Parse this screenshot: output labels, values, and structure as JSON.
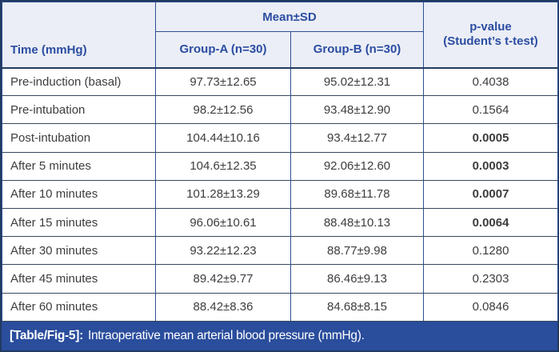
{
  "colors": {
    "header_bg": "#ebeef6",
    "header_text": "#2b4da1",
    "body_text": "#3d3d3d",
    "caption_bg": "#2a4d9c",
    "caption_text": "#ffffff",
    "outer_border": "#223a61"
  },
  "table": {
    "header": {
      "time_label": "Time (mmHg)",
      "mean_sd_label": "Mean±SD",
      "group_a_label": "Group-A (n=30)",
      "group_b_label": "Group-B (n=30)",
      "p_value_line1": "p-value",
      "p_value_line2": "(Student’s t-test)"
    },
    "rows": [
      {
        "time": "Pre-induction (basal)",
        "group_a": "97.73±12.65",
        "group_b": "95.02±12.31",
        "p": "0.4038",
        "p_bold": false
      },
      {
        "time": "Pre-intubation",
        "group_a": "98.2±12.56",
        "group_b": "93.48±12.90",
        "p": "0.1564",
        "p_bold": false
      },
      {
        "time": "Post-intubation",
        "group_a": "104.44±10.16",
        "group_b": "93.4±12.77",
        "p": "0.0005",
        "p_bold": true
      },
      {
        "time": "After 5 minutes",
        "group_a": "104.6±12.35",
        "group_b": "92.06±12.60",
        "p": "0.0003",
        "p_bold": true
      },
      {
        "time": "After 10 minutes",
        "group_a": "101.28±13.29",
        "group_b": "89.68±11.78",
        "p": "0.0007",
        "p_bold": true
      },
      {
        "time": "After 15 minutes",
        "group_a": "96.06±10.61",
        "group_b": "88.48±10.13",
        "p": "0.0064",
        "p_bold": true
      },
      {
        "time": "After 30 minutes",
        "group_a": "93.22±12.23",
        "group_b": "88.77±9.98",
        "p": "0.1280",
        "p_bold": false
      },
      {
        "time": "After 45 minutes",
        "group_a": "89.42±9.77",
        "group_b": "86.46±9.13",
        "p": "0.2303",
        "p_bold": false
      },
      {
        "time": "After 60 minutes",
        "group_a": "88.42±8.36",
        "group_b": "84.68±8.15",
        "p": "0.0846",
        "p_bold": false
      }
    ]
  },
  "caption": {
    "tag": "[Table/Fig-5]:",
    "text": "Intraoperative mean arterial blood pressure (mmHg)."
  }
}
